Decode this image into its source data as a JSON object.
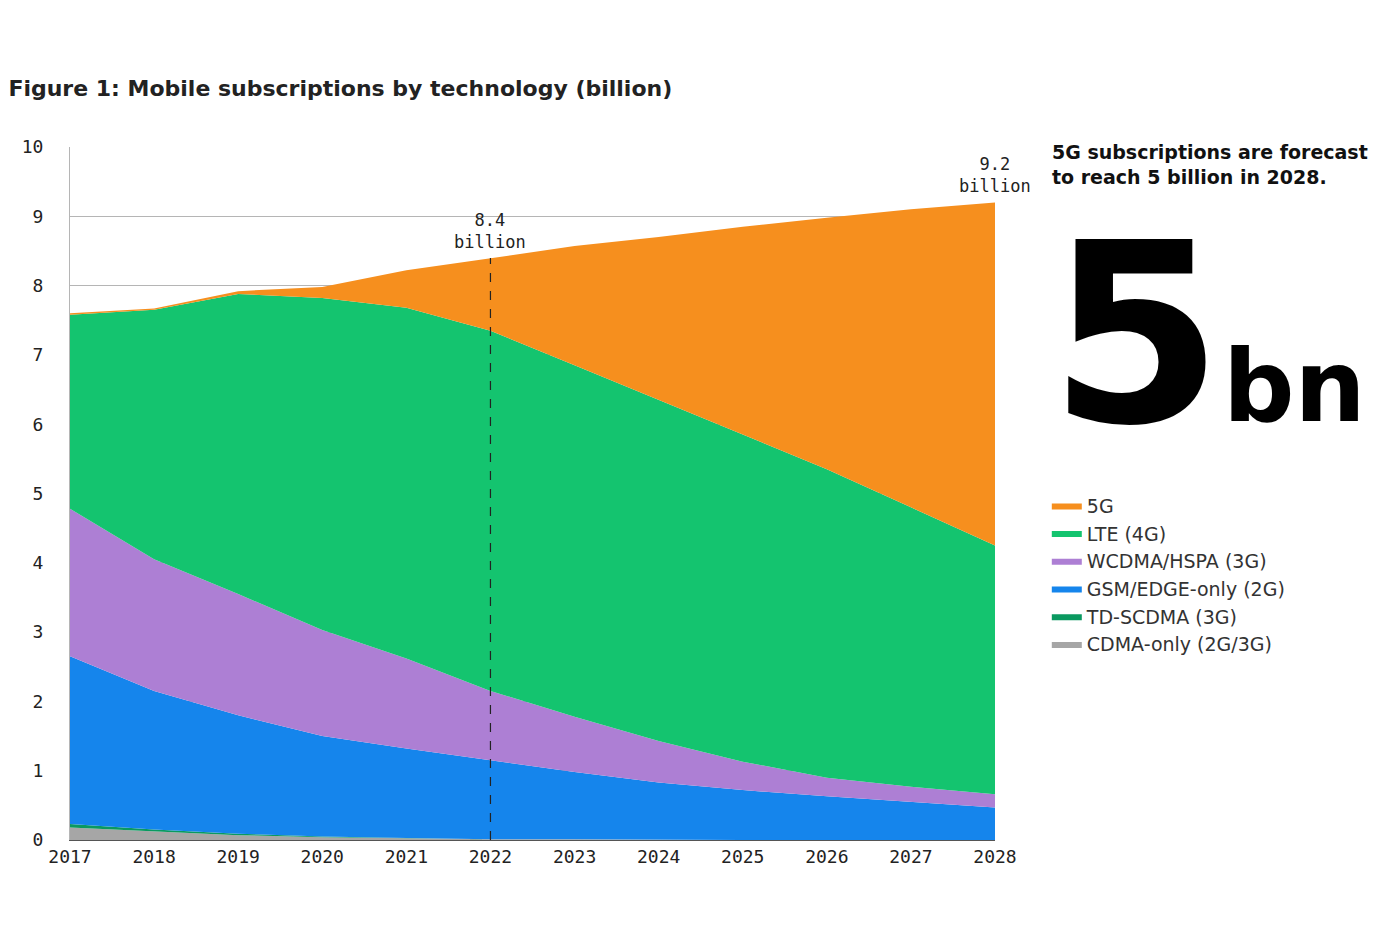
{
  "chart_data": {
    "type": "area",
    "title": "Figure 1: Mobile subscriptions by technology (billion)",
    "x": [
      2017,
      2018,
      2019,
      2020,
      2021,
      2022,
      2023,
      2024,
      2025,
      2026,
      2027,
      2028
    ],
    "xlim": [
      2017,
      2028
    ],
    "xticks": [
      2017,
      2018,
      2019,
      2020,
      2021,
      2022,
      2023,
      2024,
      2025,
      2026,
      2027,
      2028
    ],
    "ylim": [
      0,
      10
    ],
    "yticks": [
      0,
      1,
      2,
      3,
      4,
      5,
      6,
      7,
      8,
      9,
      10
    ],
    "grid": true,
    "stacked": true,
    "legend": "right",
    "series": [
      {
        "name": "CDMA-only (2G/3G)",
        "color": "#a6a6a6",
        "values": [
          0.18,
          0.12,
          0.07,
          0.04,
          0.02,
          0.01,
          0.01,
          0,
          0,
          0,
          0,
          0
        ]
      },
      {
        "name": "TD-SCDMA (3G)",
        "color": "#0a9960",
        "values": [
          0.05,
          0.03,
          0.02,
          0.01,
          0.01,
          0,
          0,
          0,
          0,
          0,
          0,
          0
        ]
      },
      {
        "name": "GSM/EDGE-only (2G)",
        "color": "#1585ec",
        "values": [
          2.42,
          2.0,
          1.71,
          1.45,
          1.29,
          1.14,
          0.97,
          0.83,
          0.72,
          0.63,
          0.55,
          0.47
        ]
      },
      {
        "name": "WCDMA/HSPA (3G)",
        "color": "#ad7fd4",
        "values": [
          2.13,
          1.9,
          1.75,
          1.53,
          1.3,
          1.0,
          0.8,
          0.6,
          0.41,
          0.27,
          0.22,
          0.19
        ]
      },
      {
        "name": "LTE (4G)",
        "color": "#14c46f",
        "values": [
          2.8,
          3.6,
          4.33,
          4.79,
          5.06,
          5.2,
          5.07,
          4.92,
          4.72,
          4.45,
          4.03,
          3.59
        ]
      },
      {
        "name": "5G",
        "color": "#f68f1e",
        "values": [
          0.02,
          0.02,
          0.04,
          0.16,
          0.54,
          1.05,
          1.72,
          2.35,
          3.0,
          3.63,
          4.3,
          4.95
        ]
      }
    ],
    "annotations": [
      {
        "text": "8.4 billion",
        "x": 2022,
        "y": 8.4
      },
      {
        "text": "9.2 billion",
        "x": 2028,
        "y": 9.2
      },
      {
        "text": "5G subscriptions are forecast to reach 5 billion in 2028."
      },
      {
        "text": "5bn"
      }
    ]
  }
}
